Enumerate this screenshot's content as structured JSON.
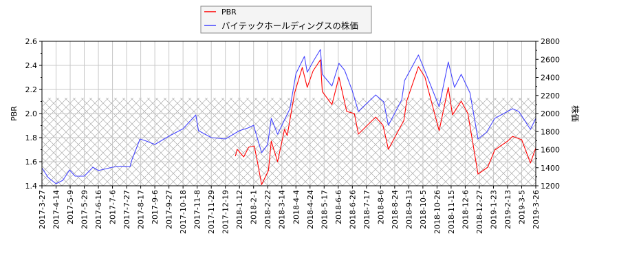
{
  "chart_data": {
    "type": "line",
    "title": "",
    "xlabel": "",
    "ylabel_left": "PBR",
    "ylabel_right": "株価",
    "ylim_left": [
      1.4,
      2.6
    ],
    "ylim_right": [
      1200,
      2800
    ],
    "yticks_left": [
      "1.4",
      "1.6",
      "1.8",
      "2.0",
      "2.2",
      "2.4",
      "2.6"
    ],
    "yticks_right": [
      "1200",
      "1400",
      "1600",
      "1800",
      "2000",
      "2200",
      "2400",
      "2600",
      "2800"
    ],
    "xticks": [
      "2017-3-27",
      "2017-4-14",
      "2017-5-9",
      "2017-5-29",
      "2017-6-16",
      "2017-7-6",
      "2017-7-27",
      "2017-8-17",
      "2017-9-6",
      "2017-9-27",
      "2017-10-18",
      "2017-11-8",
      "2017-11-29",
      "2017-12-19",
      "2018-1-12",
      "2018-2-1",
      "2018-2-22",
      "2018-3-14",
      "2018-4-4",
      "2018-4-24",
      "2018-5-17",
      "2018-6-6",
      "2018-6-26",
      "2018-7-17",
      "2018-8-6",
      "2018-8-24",
      "2018-9-13",
      "2018-10-5",
      "2018-10-26",
      "2018-11-15",
      "2018-12-6",
      "2018-12-27",
      "2019-1-23",
      "2019-2-13",
      "2019-3-5",
      "2019-3-26"
    ],
    "grid": true,
    "hatched_region_below_pbr": 2.13,
    "legend_placement": "top-center",
    "series": [
      {
        "name": "PBR",
        "axis": "left",
        "color": "#ff0000",
        "points": [
          [
            "2018-1-5",
            1.646
          ],
          [
            "2018-1-8",
            1.703
          ],
          [
            "2018-1-18",
            1.64
          ],
          [
            "2018-1-25",
            1.72
          ],
          [
            "2018-2-2",
            1.731
          ],
          [
            "2018-2-7",
            1.589
          ],
          [
            "2018-2-13",
            1.41
          ],
          [
            "2018-2-23",
            1.526
          ],
          [
            "2018-2-27",
            1.771
          ],
          [
            "2018-3-8",
            1.6
          ],
          [
            "2018-3-18",
            1.869
          ],
          [
            "2018-3-22",
            1.817
          ],
          [
            "2018-4-2",
            2.171
          ],
          [
            "2018-4-13",
            2.383
          ],
          [
            "2018-4-20",
            2.217
          ],
          [
            "2018-4-29",
            2.354
          ],
          [
            "2018-5-11",
            2.446
          ],
          [
            "2018-5-14",
            2.183
          ],
          [
            "2018-5-28",
            2.074
          ],
          [
            "2018-6-7",
            2.303
          ],
          [
            "2018-6-18",
            2.017
          ],
          [
            "2018-6-29",
            2.0
          ],
          [
            "2018-7-5",
            1.829
          ],
          [
            "2018-7-30",
            1.971
          ],
          [
            "2018-8-9",
            1.903
          ],
          [
            "2018-8-16",
            1.703
          ],
          [
            "2018-9-6",
            1.943
          ],
          [
            "2018-9-10",
            2.103
          ],
          [
            "2018-9-28",
            2.389
          ],
          [
            "2018-10-8",
            2.303
          ],
          [
            "2018-10-29",
            1.857
          ],
          [
            "2018-11-11",
            2.217
          ],
          [
            "2018-11-17",
            1.989
          ],
          [
            "2018-11-30",
            2.103
          ],
          [
            "2018-12-10",
            2.0
          ],
          [
            "2018-12-25",
            1.497
          ],
          [
            "2019-1-12",
            1.554
          ],
          [
            "2019-1-25",
            1.697
          ],
          [
            "2019-2-13",
            1.771
          ],
          [
            "2019-2-20",
            1.811
          ],
          [
            "2019-3-5",
            1.783
          ],
          [
            "2019-3-18",
            1.589
          ],
          [
            "2019-3-26",
            1.714
          ]
        ]
      },
      {
        "name": "バイテックホールディングスの株価",
        "axis": "right",
        "color": "#4444ff",
        "points": [
          [
            "2017-3-27",
            1398
          ],
          [
            "2017-4-4",
            1291
          ],
          [
            "2017-4-14",
            1223
          ],
          [
            "2017-4-26",
            1261
          ],
          [
            "2017-5-8",
            1375
          ],
          [
            "2017-5-16",
            1307
          ],
          [
            "2017-5-29",
            1307
          ],
          [
            "2017-6-9",
            1406
          ],
          [
            "2017-6-16",
            1368
          ],
          [
            "2017-7-6",
            1406
          ],
          [
            "2017-7-18",
            1418
          ],
          [
            "2017-8-1",
            1410
          ],
          [
            "2017-8-4",
            1490
          ],
          [
            "2017-8-16",
            1718
          ],
          [
            "2017-8-25",
            1695
          ],
          [
            "2017-9-6",
            1657
          ],
          [
            "2017-9-27",
            1749
          ],
          [
            "2017-10-18",
            1832
          ],
          [
            "2017-11-6",
            1985
          ],
          [
            "2017-11-10",
            1810
          ],
          [
            "2017-11-29",
            1733
          ],
          [
            "2017-12-19",
            1718
          ],
          [
            "2018-1-12",
            1810
          ],
          [
            "2018-1-24",
            1840
          ],
          [
            "2018-2-1",
            1870
          ],
          [
            "2018-2-13",
            1566
          ],
          [
            "2018-2-22",
            1657
          ],
          [
            "2018-2-27",
            1947
          ],
          [
            "2018-3-8",
            1771
          ],
          [
            "2018-3-26",
            2053
          ],
          [
            "2018-4-4",
            2442
          ],
          [
            "2018-4-16",
            2632
          ],
          [
            "2018-4-20",
            2457
          ],
          [
            "2018-4-30",
            2587
          ],
          [
            "2018-5-11",
            2709
          ],
          [
            "2018-5-14",
            2434
          ],
          [
            "2018-5-28",
            2305
          ],
          [
            "2018-6-7",
            2556
          ],
          [
            "2018-6-15",
            2480
          ],
          [
            "2018-6-26",
            2251
          ],
          [
            "2018-7-5",
            2023
          ],
          [
            "2018-7-17",
            2110
          ],
          [
            "2018-7-30",
            2206
          ],
          [
            "2018-8-10",
            2130
          ],
          [
            "2018-8-16",
            1870
          ],
          [
            "2018-9-3",
            2152
          ],
          [
            "2018-9-7",
            2365
          ],
          [
            "2018-9-28",
            2648
          ],
          [
            "2018-10-10",
            2434
          ],
          [
            "2018-10-29",
            2076
          ],
          [
            "2018-11-11",
            2571
          ],
          [
            "2018-11-20",
            2290
          ],
          [
            "2018-11-30",
            2434
          ],
          [
            "2018-12-13",
            2229
          ],
          [
            "2018-12-25",
            1718
          ],
          [
            "2019-1-10",
            1794
          ],
          [
            "2019-1-25",
            1947
          ],
          [
            "2019-2-20",
            2053
          ],
          [
            "2019-3-1",
            2023
          ],
          [
            "2019-3-18",
            1825
          ],
          [
            "2019-3-26",
            1947
          ]
        ]
      }
    ]
  }
}
